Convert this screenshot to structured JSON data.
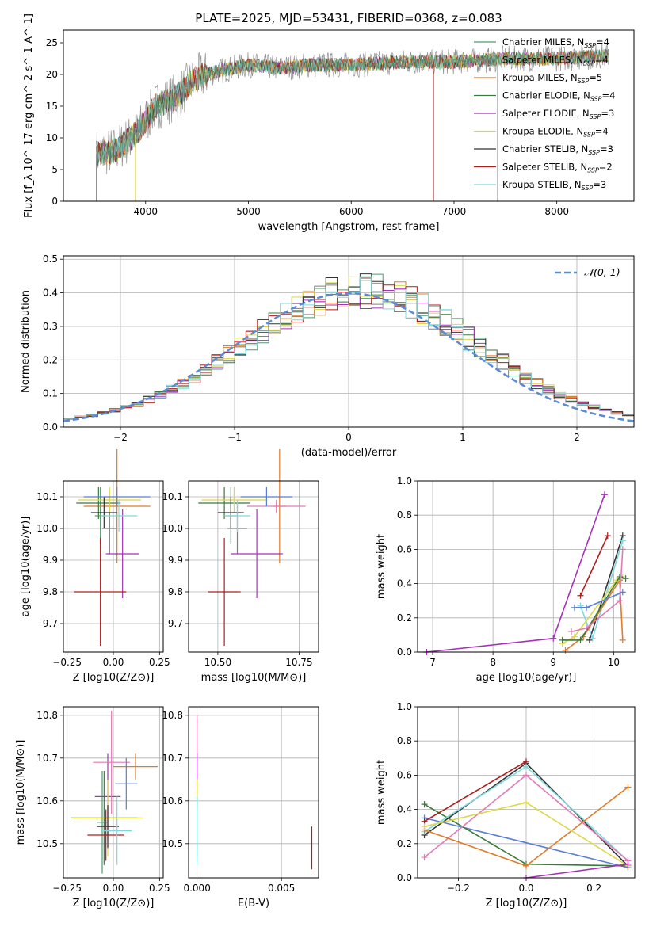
{
  "figure_title": "PLATE=2025, MJD=53431, FIBERID=0368, z=0.083",
  "models": [
    {
      "name": "Chabrier MILES",
      "n": "4",
      "color": "#4f9a6e"
    },
    {
      "name": "Salpeter MILES",
      "n": "4",
      "color": "#808080"
    },
    {
      "name": "Kroupa MILES",
      "n": "5",
      "color": "#e07b29"
    },
    {
      "name": "Chabrier ELODIE",
      "n": "4",
      "color": "#3a7a3a"
    },
    {
      "name": "Salpeter ELODIE",
      "n": "3",
      "color": "#a632b8"
    },
    {
      "name": "Kroupa ELODIE",
      "n": "4",
      "color": "#dcd84a"
    },
    {
      "name": "Chabrier STELIB",
      "n": "3",
      "color": "#333333"
    },
    {
      "name": "Salpeter STELIB",
      "n": "2",
      "color": "#b01c1c"
    },
    {
      "name": "Kroupa STELIB",
      "n": "3",
      "color": "#7fd8dc"
    }
  ],
  "chart_data": [
    {
      "id": "spectrum",
      "type": "line",
      "xlabel": "wavelength [Angstrom, rest frame]",
      "ylabel": "Flux [f_λ 10^-17 erg cm^-2 s^-1 A^-1]",
      "xlim": [
        3200,
        8750
      ],
      "ylim": [
        0,
        27
      ],
      "xticks": [
        4000,
        5000,
        6000,
        7000,
        8000
      ],
      "yticks": [
        0,
        5,
        10,
        15,
        20,
        25
      ],
      "envelope": {
        "x": [
          3520,
          3700,
          3900,
          4100,
          4300,
          4500,
          4700,
          5000,
          5300,
          5600,
          6000,
          6500,
          7000,
          7500,
          8000,
          8500
        ],
        "y": [
          7.5,
          8.0,
          10.5,
          15.0,
          16.5,
          19.5,
          20.5,
          21.5,
          21.0,
          21.5,
          21.5,
          22.0,
          22.0,
          22.5,
          22.5,
          23.0
        ]
      }
    },
    {
      "id": "residuals",
      "type": "step",
      "xlabel": "(data-model)/error",
      "ylabel": "Normed distribution",
      "xlim": [
        -2.5,
        2.5
      ],
      "ylim": [
        0,
        0.51
      ],
      "xticks": [
        -2,
        -1,
        0,
        1,
        2
      ],
      "yticks": [
        0.0,
        0.1,
        0.2,
        0.3,
        0.4,
        0.5
      ],
      "legend": "N(0,1)"
    },
    {
      "id": "age_vs_Z",
      "type": "errorbar",
      "xlabel": "Z [log10(Z/Z⊙)]",
      "ylabel": "age [log10(age/yr)]",
      "xlim": [
        -0.27,
        0.27
      ],
      "ylim": [
        9.61,
        10.15
      ],
      "xticks": [
        -0.25,
        0.0,
        0.25
      ],
      "yticks": [
        9.7,
        9.8,
        9.9,
        10.0,
        10.1
      ],
      "points": [
        {
          "m": 0,
          "x": -0.07,
          "y": 10.04,
          "xerr": 0.03,
          "yerr": 0.09
        },
        {
          "m": 1,
          "x": -0.02,
          "y": 10.0,
          "xerr": 0.04,
          "yerr": 0.08
        },
        {
          "m": 2,
          "x": 0.02,
          "y": 10.07,
          "xerr": 0.18,
          "yerr": 0.18
        },
        {
          "m": 3,
          "x": -0.08,
          "y": 10.08,
          "xerr": 0.12,
          "yerr": 0.05
        },
        {
          "m": 4,
          "x": 0.05,
          "y": 9.92,
          "xerr": 0.09,
          "yerr": 0.14
        },
        {
          "m": 5,
          "x": -0.02,
          "y": 10.09,
          "xerr": 0.17,
          "yerr": 0.04
        },
        {
          "m": 6,
          "x": -0.05,
          "y": 10.05,
          "xerr": 0.07,
          "yerr": 0.05
        },
        {
          "m": 7,
          "x": -0.07,
          "y": 9.8,
          "xerr": 0.14,
          "yerr": 0.17
        },
        {
          "m": 8,
          "x": 0.03,
          "y": 10.04,
          "xerr": 0.1,
          "yerr": 0.05
        },
        {
          "m": "blue",
          "x": 0.02,
          "y": 10.1,
          "xerr": 0.18,
          "yerr": 0.03
        }
      ]
    },
    {
      "id": "age_vs_mass",
      "type": "errorbar",
      "xlabel": "mass [log10(M/M⊙)]",
      "xlim": [
        10.41,
        10.81
      ],
      "ylim": [
        9.61,
        10.15
      ],
      "xticks": [
        10.5,
        10.75
      ],
      "yticks": [
        9.7,
        9.8,
        9.9,
        10.0,
        10.1
      ],
      "points": [
        {
          "m": 0,
          "x": 10.54,
          "y": 10.04,
          "xerr": 0.02,
          "yerr": 0.09
        },
        {
          "m": 1,
          "x": 10.56,
          "y": 10.0,
          "xerr": 0.03,
          "yerr": 0.08
        },
        {
          "m": 2,
          "x": 10.69,
          "y": 10.07,
          "xerr": 0.02,
          "yerr": 0.18
        },
        {
          "m": 3,
          "x": 10.52,
          "y": 10.08,
          "xerr": 0.08,
          "yerr": 0.05
        },
        {
          "m": 4,
          "x": 10.62,
          "y": 9.92,
          "xerr": 0.08,
          "yerr": 0.14
        },
        {
          "m": 5,
          "x": 10.55,
          "y": 10.09,
          "xerr": 0.1,
          "yerr": 0.04
        },
        {
          "m": 6,
          "x": 10.54,
          "y": 10.05,
          "xerr": 0.04,
          "yerr": 0.05
        },
        {
          "m": 7,
          "x": 10.52,
          "y": 9.8,
          "xerr": 0.05,
          "yerr": 0.17
        },
        {
          "m": 8,
          "x": 10.56,
          "y": 10.04,
          "xerr": 0.04,
          "yerr": 0.05
        },
        {
          "m": "pink",
          "x": 10.68,
          "y": 10.07,
          "xerr": 0.09,
          "yerr": 0.02
        },
        {
          "m": "blue",
          "x": 10.65,
          "y": 10.1,
          "xerr": 0.08,
          "yerr": 0.03
        }
      ]
    },
    {
      "id": "mass_weight_vs_age",
      "type": "line",
      "xlabel": "age [log10(age/yr)]",
      "ylabel": "mass weight",
      "xlim": [
        6.75,
        10.35
      ],
      "ylim": [
        0,
        1
      ],
      "xticks": [
        7,
        8,
        9,
        10
      ],
      "yticks": [
        0.0,
        0.2,
        0.4,
        0.6,
        0.8,
        1.0
      ],
      "series": [
        {
          "m": 4,
          "x": [
            6.9,
            9.0,
            9.85
          ],
          "y": [
            0.0,
            0.08,
            0.92
          ]
        },
        {
          "m": 7,
          "x": [
            9.45,
            9.9
          ],
          "y": [
            0.33,
            0.68
          ]
        },
        {
          "m": 6,
          "x": [
            9.6,
            10.15
          ],
          "y": [
            0.07,
            0.68
          ]
        },
        {
          "m": 8,
          "x": [
            9.45,
            9.65,
            10.15
          ],
          "y": [
            0.27,
            0.08,
            0.65
          ]
        },
        {
          "m": 2,
          "x": [
            9.2,
            9.5,
            10.1,
            10.15
          ],
          "y": [
            0.01,
            0.09,
            0.42,
            0.07
          ]
        },
        {
          "m": 5,
          "x": [
            9.15,
            9.35,
            10.05,
            10.15
          ],
          "y": [
            0.05,
            0.09,
            0.42,
            0.44
          ]
        },
        {
          "m": 3,
          "x": [
            9.15,
            9.45,
            10.1,
            10.2
          ],
          "y": [
            0.07,
            0.07,
            0.44,
            0.43
          ]
        },
        {
          "m": "pink",
          "x": [
            9.3,
            9.55,
            10.1,
            10.15
          ],
          "y": [
            0.12,
            0.14,
            0.3,
            0.6
          ]
        },
        {
          "m": "blue",
          "x": [
            9.35,
            9.55,
            10.15
          ],
          "y": [
            0.26,
            0.26,
            0.35
          ]
        }
      ]
    },
    {
      "id": "mass_vs_Z",
      "type": "errorbar",
      "xlabel": "Z [log10(Z/Z⊙)]",
      "ylabel": "mass [log10(M/M⊙)]",
      "xlim": [
        -0.27,
        0.27
      ],
      "ylim": [
        10.42,
        10.82
      ],
      "xticks": [
        -0.25,
        0.0,
        0.25
      ],
      "yticks": [
        10.5,
        10.6,
        10.7,
        10.8
      ],
      "points": [
        {
          "m": 0,
          "x": -0.06,
          "y": 10.55,
          "xerr": 0.03,
          "yerr": 0.12
        },
        {
          "m": 3,
          "x": -0.05,
          "y": 10.56,
          "xerr": 0.18,
          "yerr": 0.11
        },
        {
          "m": 2,
          "x": 0.12,
          "y": 10.68,
          "xerr": 0.12,
          "yerr": 0.03
        },
        {
          "m": 4,
          "x": -0.03,
          "y": 10.61,
          "xerr": 0.07,
          "yerr": 0.1
        },
        {
          "m": 5,
          "x": -0.03,
          "y": 10.56,
          "xerr": 0.19,
          "yerr": 0.09
        },
        {
          "m": 6,
          "x": -0.03,
          "y": 10.54,
          "xerr": 0.06,
          "yerr": 0.05
        },
        {
          "m": 7,
          "x": -0.04,
          "y": 10.52,
          "xerr": 0.1,
          "yerr": 0.06
        },
        {
          "m": 8,
          "x": 0.02,
          "y": 10.53,
          "xerr": 0.08,
          "yerr": 0.08
        },
        {
          "m": "pink",
          "x": -0.01,
          "y": 10.69,
          "xerr": 0.1,
          "yerr": 0.12
        },
        {
          "m": "blue",
          "x": 0.07,
          "y": 10.64,
          "xerr": 0.06,
          "yerr": 0.06
        }
      ]
    },
    {
      "id": "mass_vs_EBV",
      "type": "errorbar",
      "xlabel": "E(B-V)",
      "xlim": [
        -0.0005,
        0.0072
      ],
      "ylim": [
        10.42,
        10.82
      ],
      "xticks": [
        0.0,
        0.005
      ],
      "yticks": [
        10.5,
        10.6,
        10.7,
        10.8
      ],
      "points": [
        {
          "m": "pink",
          "x": 0.0,
          "y": 10.69,
          "xerr": 0.0,
          "yerr": 0.11
        },
        {
          "m": 4,
          "x": 0.0,
          "y": 10.68,
          "xerr": 0.0,
          "yerr": 0.03
        },
        {
          "m": 5,
          "x": 0.0,
          "y": 10.56,
          "xerr": 0.0,
          "yerr": 0.09
        },
        {
          "m": 8,
          "x": 0.0,
          "y": 10.53,
          "xerr": 0.0,
          "yerr": 0.08
        },
        {
          "m": 7,
          "x": 0.0068,
          "y": 10.49,
          "xerr": 0.0,
          "yerr": 0.05
        }
      ]
    },
    {
      "id": "mass_weight_vs_Z",
      "type": "line",
      "xlabel": "Z [log10(Z/Z⊙)]",
      "ylabel": "mass weight",
      "xlim": [
        -0.32,
        0.32
      ],
      "ylim": [
        0,
        1
      ],
      "xticks": [
        -0.2,
        0.0,
        0.2
      ],
      "yticks": [
        0.0,
        0.2,
        0.4,
        0.6,
        0.8,
        1.0
      ],
      "series": [
        {
          "m": "blue",
          "x": [
            -0.3,
            0.3
          ],
          "y": [
            0.35,
            0.06
          ]
        },
        {
          "m": 3,
          "x": [
            -0.3,
            0.0,
            0.3
          ],
          "y": [
            0.43,
            0.08,
            0.07
          ]
        },
        {
          "m": 6,
          "x": [
            -0.3,
            0.0,
            0.3
          ],
          "y": [
            0.25,
            0.67,
            0.07
          ]
        },
        {
          "m": 7,
          "x": [
            -0.3,
            0.0
          ],
          "y": [
            0.33,
            0.68
          ]
        },
        {
          "m": 8,
          "x": [
            -0.3,
            0.0,
            0.3
          ],
          "y": [
            0.27,
            0.65,
            0.1
          ]
        },
        {
          "m": "pink",
          "x": [
            -0.3,
            0.0,
            0.3
          ],
          "y": [
            0.12,
            0.6,
            0.1
          ]
        },
        {
          "m": 2,
          "x": [
            -0.3,
            0.0,
            0.3
          ],
          "y": [
            0.28,
            0.07,
            0.53
          ]
        },
        {
          "m": 5,
          "x": [
            -0.3,
            0.0,
            0.3
          ],
          "y": [
            0.3,
            0.44,
            0.07
          ]
        },
        {
          "m": 4,
          "x": [
            0.0,
            0.3
          ],
          "y": [
            0.0,
            0.08
          ]
        }
      ]
    }
  ]
}
